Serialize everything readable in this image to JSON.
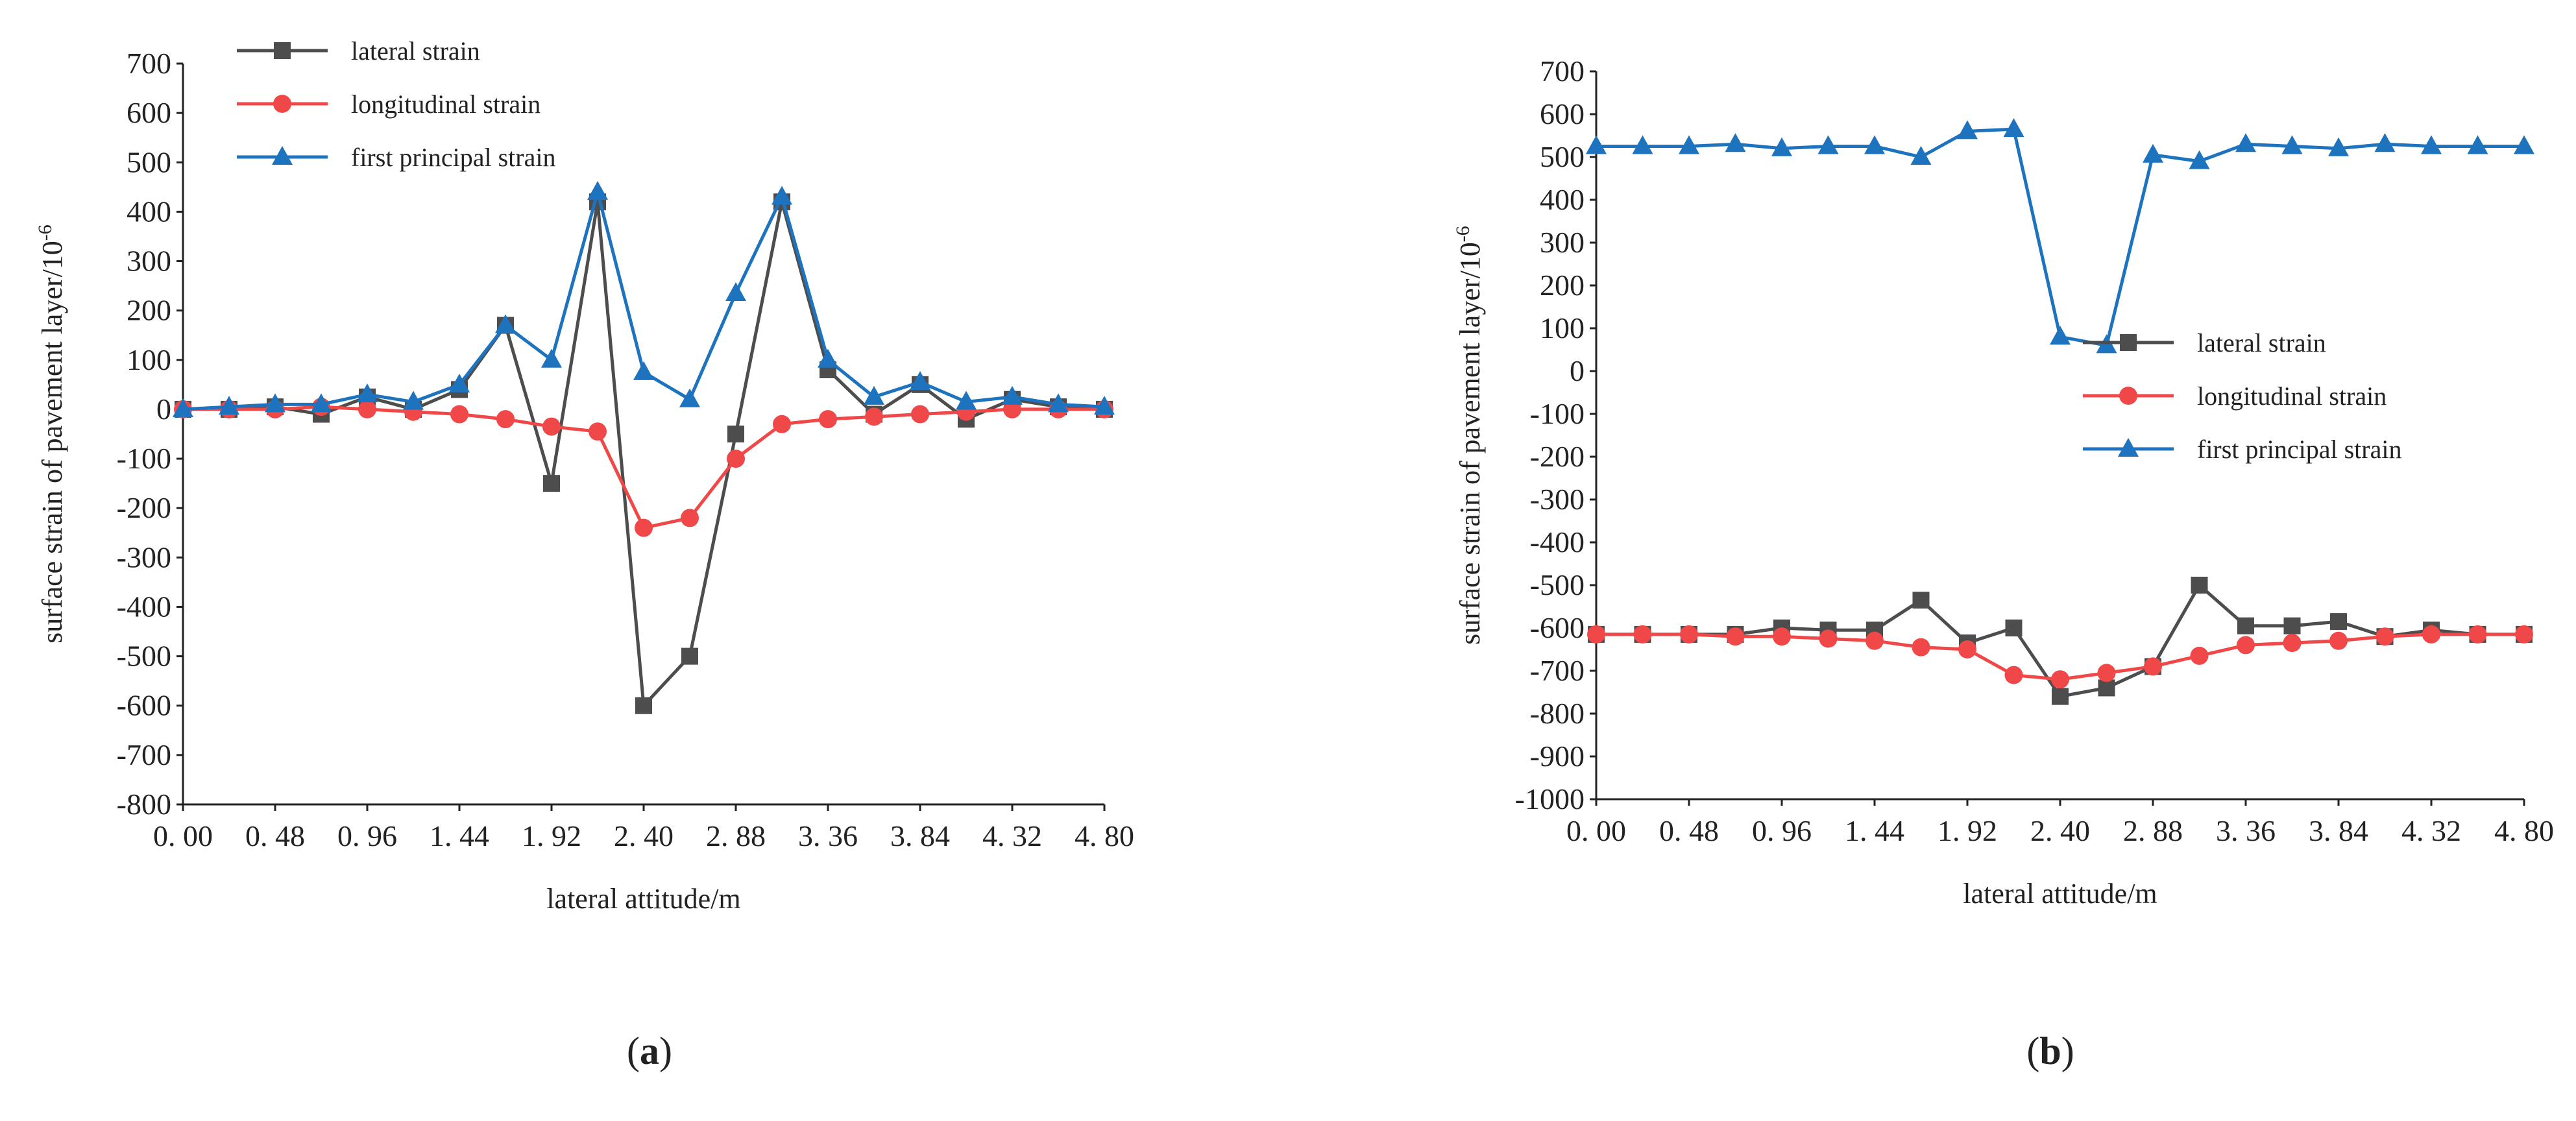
{
  "chart_data": [
    {
      "type": "line",
      "panel_label": "a",
      "title": "",
      "xlabel": "lateral attitude/m",
      "ylabel": "surface strain of pavement layer/10",
      "ylabel_superscript": "-6",
      "x": [
        0,
        0.24,
        0.48,
        0.72,
        0.96,
        1.2,
        1.44,
        1.68,
        1.92,
        2.16,
        2.4,
        2.64,
        2.88,
        3.12,
        3.36,
        3.6,
        3.84,
        4.08,
        4.32,
        4.56,
        4.8
      ],
      "xlim": [
        0,
        4.8
      ],
      "ylim": [
        -800,
        700
      ],
      "x_ticks": [
        0,
        0.48,
        0.96,
        1.44,
        1.92,
        2.4,
        2.88,
        3.36,
        3.84,
        4.32,
        4.8
      ],
      "x_tick_labels": [
        "0. 00",
        "0. 48",
        "0. 96",
        "1. 44",
        "1. 92",
        "2. 40",
        "2. 88",
        "3. 36",
        "3. 84",
        "4. 32",
        "4. 80"
      ],
      "y_ticks": [
        -800,
        -700,
        -600,
        -500,
        -400,
        -300,
        -200,
        -100,
        0,
        100,
        200,
        300,
        400,
        500,
        600,
        700
      ],
      "legend_position": "top-left",
      "series": [
        {
          "name": "lateral strain",
          "color": "#4d4d4d",
          "marker": "square",
          "values": [
            0,
            0,
            5,
            -10,
            25,
            0,
            40,
            170,
            -150,
            420,
            -600,
            -500,
            -50,
            420,
            80,
            -10,
            50,
            -20,
            20,
            5,
            0
          ]
        },
        {
          "name": "longitudinal strain",
          "color": "#f04848",
          "marker": "circle",
          "values": [
            0,
            0,
            0,
            5,
            0,
            -5,
            -10,
            -20,
            -35,
            -45,
            -240,
            -220,
            -100,
            -30,
            -20,
            -15,
            -10,
            -5,
            0,
            0,
            0
          ]
        },
        {
          "name": "first principal strain",
          "color": "#1e73be",
          "marker": "triangle",
          "values": [
            0,
            5,
            10,
            10,
            30,
            15,
            50,
            170,
            100,
            440,
            75,
            20,
            235,
            430,
            100,
            25,
            55,
            15,
            25,
            10,
            5
          ]
        }
      ]
    },
    {
      "type": "line",
      "panel_label": "b",
      "title": "",
      "xlabel": "lateral attitude/m",
      "ylabel": "surface strain of pavement layer/10",
      "ylabel_superscript": "-6",
      "x": [
        0,
        0.24,
        0.48,
        0.72,
        0.96,
        1.2,
        1.44,
        1.68,
        1.92,
        2.16,
        2.4,
        2.64,
        2.88,
        3.12,
        3.36,
        3.6,
        3.84,
        4.08,
        4.32,
        4.56,
        4.8
      ],
      "xlim": [
        0,
        4.8
      ],
      "ylim": [
        -1000,
        700
      ],
      "x_ticks": [
        0,
        0.48,
        0.96,
        1.44,
        1.92,
        2.4,
        2.88,
        3.36,
        3.84,
        4.32,
        4.8
      ],
      "x_tick_labels": [
        "0. 00",
        "0. 48",
        "0. 96",
        "1. 44",
        "1. 92",
        "2. 40",
        "2. 88",
        "3. 36",
        "3. 84",
        "4. 32",
        "4. 80"
      ],
      "y_ticks": [
        -1000,
        -900,
        -800,
        -700,
        -600,
        -500,
        -400,
        -300,
        -200,
        -100,
        0,
        100,
        200,
        300,
        400,
        500,
        600,
        700
      ],
      "legend_position": "center-right",
      "series": [
        {
          "name": "lateral strain",
          "color": "#4d4d4d",
          "marker": "square",
          "values": [
            -615,
            -615,
            -615,
            -615,
            -600,
            -605,
            -605,
            -535,
            -635,
            -600,
            -760,
            -740,
            -690,
            -500,
            -595,
            -595,
            -585,
            -620,
            -605,
            -615,
            -615
          ]
        },
        {
          "name": "longitudinal strain",
          "color": "#f04848",
          "marker": "circle",
          "values": [
            -615,
            -615,
            -615,
            -620,
            -620,
            -625,
            -630,
            -645,
            -650,
            -710,
            -720,
            -705,
            -690,
            -665,
            -640,
            -635,
            -630,
            -620,
            -615,
            -615,
            -615
          ]
        },
        {
          "name": "first principal strain",
          "color": "#1e73be",
          "marker": "triangle",
          "values": [
            525,
            525,
            525,
            530,
            520,
            525,
            525,
            500,
            560,
            565,
            80,
            60,
            505,
            490,
            530,
            525,
            520,
            530,
            525,
            525,
            525
          ]
        }
      ]
    }
  ]
}
